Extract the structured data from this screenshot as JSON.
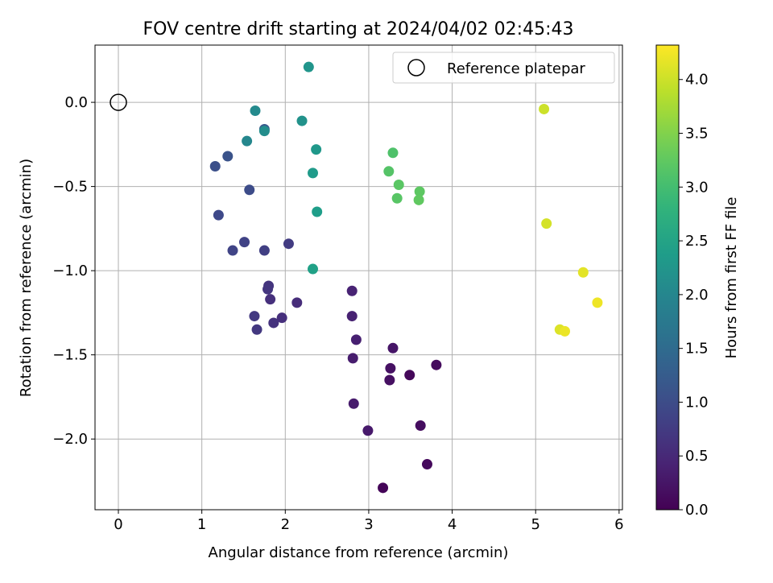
{
  "chart_data": {
    "type": "scatter",
    "title": "FOV centre drift starting at 2024/04/02 02:45:43",
    "xlabel": "Angular distance from reference (arcmin)",
    "ylabel": "Rotation from reference (arcmin)",
    "xlim": [
      -0.28,
      6.04
    ],
    "ylim": [
      -2.42,
      0.34
    ],
    "xticks": [
      0,
      1,
      2,
      3,
      4,
      5,
      6
    ],
    "xtick_labels": [
      "0",
      "1",
      "2",
      "3",
      "4",
      "5",
      "6"
    ],
    "yticks": [
      0.0,
      -0.5,
      -1.0,
      -1.5,
      -2.0
    ],
    "ytick_labels": [
      "0.0",
      "−0.5",
      "−1.0",
      "−1.5",
      "−2.0"
    ],
    "grid": true,
    "legend": {
      "placement": "top-right",
      "entries": [
        "Reference platepar"
      ]
    },
    "reference_point": {
      "x": 0.0,
      "y": 0.0,
      "marker": "open-circle"
    },
    "colorbar": {
      "label": "Hours from first FF file",
      "colormap": "viridis",
      "range": [
        0.0,
        4.32
      ],
      "ticks": [
        0.0,
        0.5,
        1.0,
        1.5,
        2.0,
        2.5,
        3.0,
        3.5,
        4.0
      ],
      "tick_labels": [
        "0.0",
        "0.5",
        "1.0",
        "1.5",
        "2.0",
        "2.5",
        "3.0",
        "3.5",
        "4.0"
      ]
    },
    "points": [
      {
        "x": 3.17,
        "y": -2.29,
        "hours": 0.05
      },
      {
        "x": 3.7,
        "y": -2.15,
        "hours": 0.1
      },
      {
        "x": 3.62,
        "y": -1.92,
        "hours": 0.15
      },
      {
        "x": 3.81,
        "y": -1.56,
        "hours": 0.12
      },
      {
        "x": 3.49,
        "y": -1.62,
        "hours": 0.08
      },
      {
        "x": 3.25,
        "y": -1.65,
        "hours": 0.18
      },
      {
        "x": 3.26,
        "y": -1.58,
        "hours": 0.2
      },
      {
        "x": 3.29,
        "y": -1.46,
        "hours": 0.25
      },
      {
        "x": 2.99,
        "y": -1.95,
        "hours": 0.3
      },
      {
        "x": 2.82,
        "y": -1.79,
        "hours": 0.32
      },
      {
        "x": 2.81,
        "y": -1.52,
        "hours": 0.35
      },
      {
        "x": 2.85,
        "y": -1.41,
        "hours": 0.38
      },
      {
        "x": 2.8,
        "y": -1.27,
        "hours": 0.4
      },
      {
        "x": 2.8,
        "y": -1.12,
        "hours": 0.42
      },
      {
        "x": 2.14,
        "y": -1.19,
        "hours": 0.55
      },
      {
        "x": 1.96,
        "y": -1.28,
        "hours": 0.58
      },
      {
        "x": 1.86,
        "y": -1.31,
        "hours": 0.62
      },
      {
        "x": 1.82,
        "y": -1.17,
        "hours": 0.6
      },
      {
        "x": 1.8,
        "y": -1.09,
        "hours": 0.65
      },
      {
        "x": 1.79,
        "y": -1.11,
        "hours": 0.68
      },
      {
        "x": 1.66,
        "y": -1.35,
        "hours": 0.7
      },
      {
        "x": 1.63,
        "y": -1.27,
        "hours": 0.72
      },
      {
        "x": 2.04,
        "y": -0.84,
        "hours": 0.75
      },
      {
        "x": 1.75,
        "y": -0.88,
        "hours": 0.8
      },
      {
        "x": 1.51,
        "y": -0.83,
        "hours": 0.85
      },
      {
        "x": 1.37,
        "y": -0.88,
        "hours": 0.88
      },
      {
        "x": 1.2,
        "y": -0.67,
        "hours": 0.95
      },
      {
        "x": 1.57,
        "y": -0.52,
        "hours": 1.0
      },
      {
        "x": 1.16,
        "y": -0.38,
        "hours": 1.05
      },
      {
        "x": 1.31,
        "y": -0.32,
        "hours": 1.1
      },
      {
        "x": 1.75,
        "y": -0.16,
        "hours": 1.2
      },
      {
        "x": 1.54,
        "y": -0.23,
        "hours": 2.0
      },
      {
        "x": 1.64,
        "y": -0.05,
        "hours": 2.05
      },
      {
        "x": 1.75,
        "y": -0.17,
        "hours": 2.1
      },
      {
        "x": 2.2,
        "y": -0.11,
        "hours": 2.2
      },
      {
        "x": 2.28,
        "y": 0.21,
        "hours": 2.25
      },
      {
        "x": 2.37,
        "y": -0.28,
        "hours": 2.3
      },
      {
        "x": 2.33,
        "y": -0.42,
        "hours": 2.35
      },
      {
        "x": 2.38,
        "y": -0.65,
        "hours": 2.4
      },
      {
        "x": 2.33,
        "y": -0.99,
        "hours": 2.45
      },
      {
        "x": 3.29,
        "y": -0.3,
        "hours": 3.1
      },
      {
        "x": 3.24,
        "y": -0.41,
        "hours": 3.15
      },
      {
        "x": 3.36,
        "y": -0.49,
        "hours": 3.2
      },
      {
        "x": 3.34,
        "y": -0.57,
        "hours": 3.18
      },
      {
        "x": 3.61,
        "y": -0.53,
        "hours": 3.22
      },
      {
        "x": 3.6,
        "y": -0.58,
        "hours": 3.25
      },
      {
        "x": 5.1,
        "y": -0.04,
        "hours": 4.0
      },
      {
        "x": 5.13,
        "y": -0.72,
        "hours": 4.05
      },
      {
        "x": 5.57,
        "y": -1.01,
        "hours": 4.15
      },
      {
        "x": 5.74,
        "y": -1.19,
        "hours": 4.22
      },
      {
        "x": 5.29,
        "y": -1.35,
        "hours": 4.1
      },
      {
        "x": 5.35,
        "y": -1.36,
        "hours": 4.2
      }
    ]
  }
}
